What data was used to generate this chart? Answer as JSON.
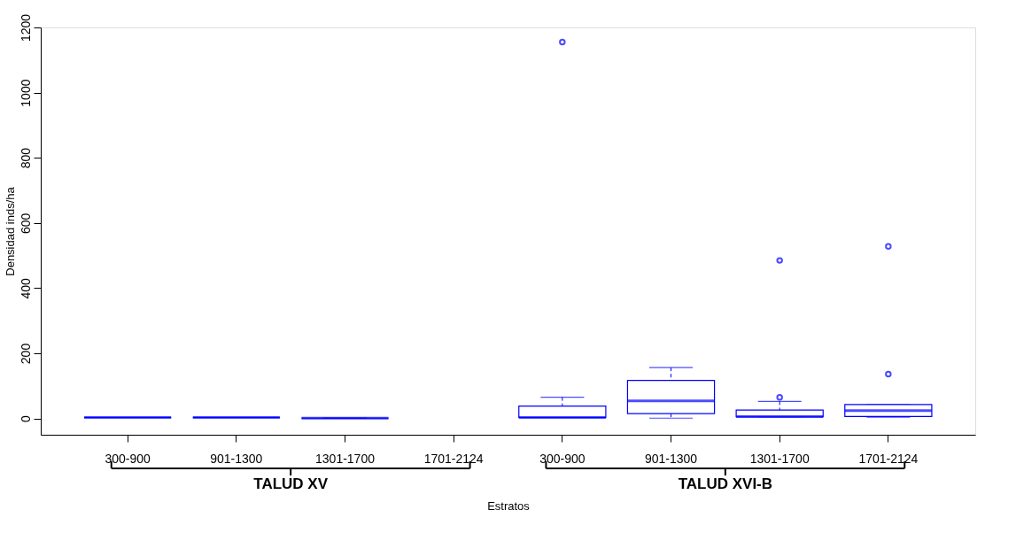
{
  "chart_data": {
    "type": "box",
    "xlabel": "Estratos",
    "ylabel": "Densidad inds/ha",
    "categories": [
      "300-900",
      "901-1300",
      "1301-1700",
      "1701-2124",
      "300-900",
      "901-1300",
      "1301-1700",
      "1701-2124"
    ],
    "series": [
      {
        "color": "#0000ff",
        "boxes": [
          {
            "low": 3,
            "q1": 3,
            "median": 3,
            "q3": 3,
            "high": 3
          },
          {
            "low": 3,
            "q1": 3,
            "median": 3,
            "q3": 3,
            "high": 3
          },
          {
            "low": 1,
            "q1": 1,
            "median": 1,
            "q3": 1,
            "high": 1
          },
          null,
          {
            "low": 3,
            "q1": 3,
            "median": 3,
            "q3": 38,
            "high": 65,
            "outliers": [
              1155
            ]
          },
          {
            "low": 1,
            "q1": 15,
            "median": 54,
            "q3": 117,
            "high": 156
          },
          {
            "low": 5,
            "q1": 5,
            "median": 6,
            "q3": 26,
            "high": 52,
            "outliers": [
              65,
              485
            ]
          },
          {
            "low": 4,
            "q1": 6,
            "median": 24,
            "q3": 43,
            "high": 43,
            "outliers": [
              136,
              528
            ]
          }
        ]
      }
    ],
    "ylim": [
      -50,
      1200
    ],
    "yticks": [
      0,
      200,
      400,
      600,
      800,
      1000,
      1200
    ],
    "annotations": [
      "TALUD XV",
      "TALUD XVI-B"
    ]
  }
}
